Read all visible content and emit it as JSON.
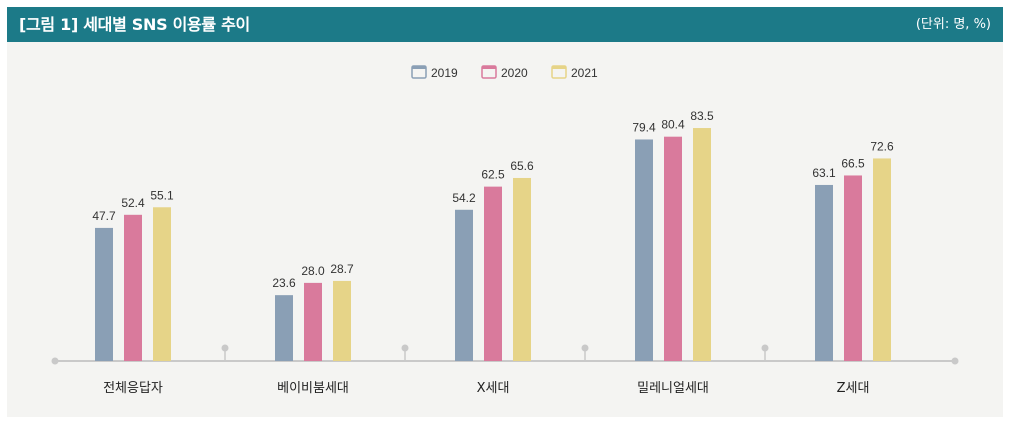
{
  "header": {
    "title": "[그림 1]  세대별 SNS 이용률 추이",
    "unit": "(단위: 명, %)"
  },
  "colors": {
    "header_bg": "#1c7a88",
    "panel_bg": "#f4f4f2",
    "axis": "#c9c9c9"
  },
  "chart_data": {
    "type": "bar",
    "title": "[그림 1]  세대별 SNS 이용률 추이",
    "unit": "(단위: 명, %)",
    "xlabel": "",
    "ylabel": "",
    "ylim": [
      0,
      100
    ],
    "grid": false,
    "legend": "top-center",
    "categories": [
      "전체응답자",
      "베이비붐세대",
      "X세대",
      "밀레니얼세대",
      "Z세대"
    ],
    "series": [
      {
        "name": "2019",
        "color": "#8a9fb5",
        "values": [
          47.7,
          23.6,
          54.2,
          79.4,
          63.1
        ]
      },
      {
        "name": "2020",
        "color": "#d97a9c",
        "values": [
          52.4,
          28.0,
          62.5,
          80.4,
          66.5
        ]
      },
      {
        "name": "2021",
        "color": "#e6d488",
        "values": [
          55.1,
          28.7,
          65.6,
          83.5,
          72.6
        ]
      }
    ]
  }
}
